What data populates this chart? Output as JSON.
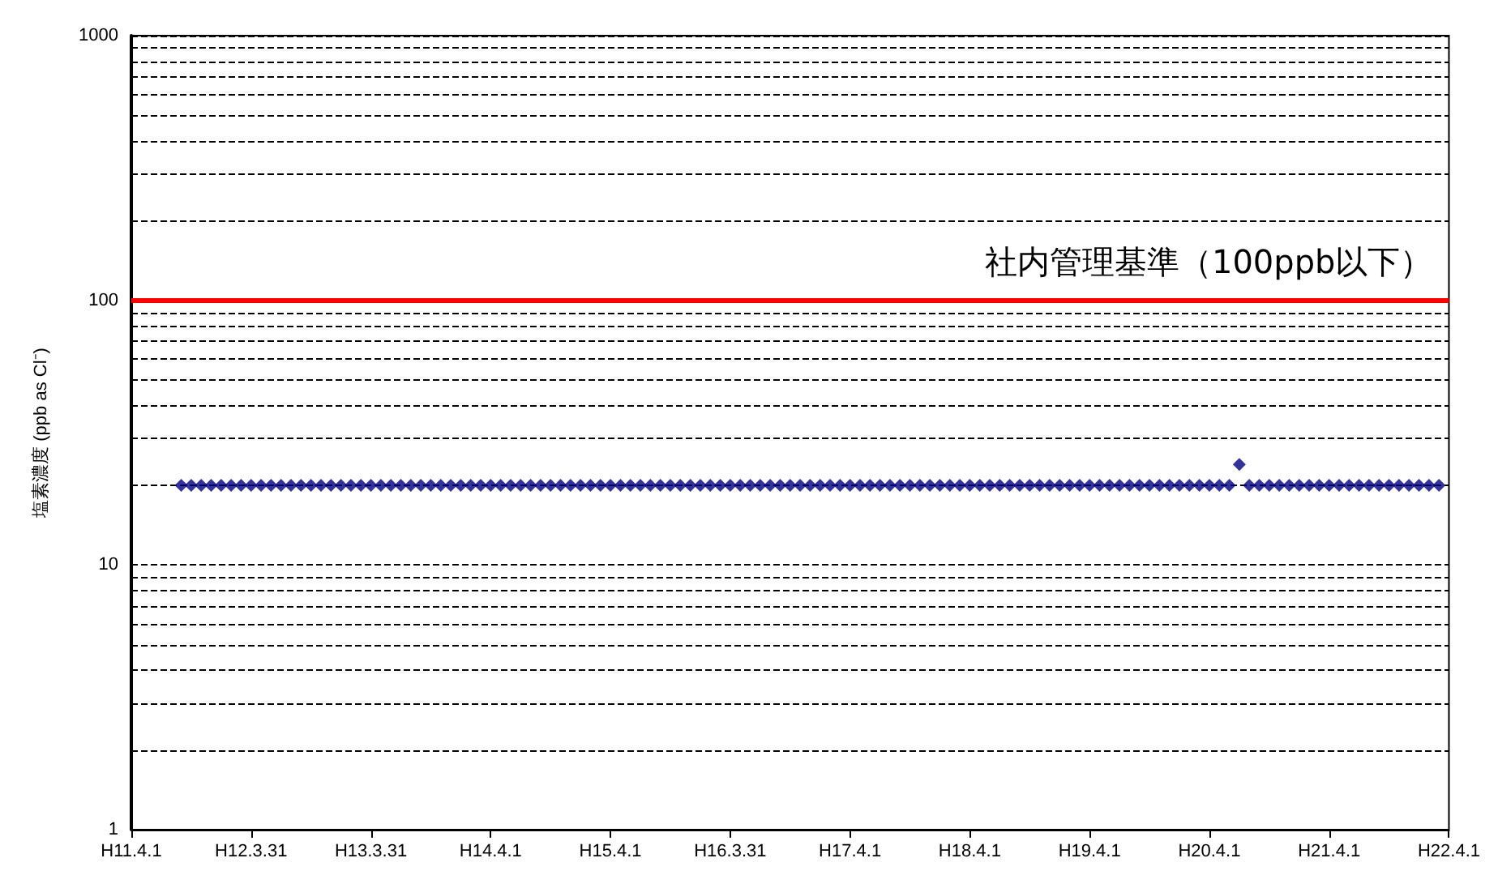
{
  "chart_data": {
    "type": "scatter",
    "ylabel": "塩素濃度 (ppb as Cl⁻)",
    "log": "y",
    "grid": "y",
    "marker": "diamond",
    "categories": [
      "H11.4.1",
      null,
      null,
      null,
      null,
      null,
      null,
      null,
      null,
      null,
      null,
      null,
      "H12.3.31",
      null,
      null,
      null,
      null,
      null,
      null,
      null,
      null,
      null,
      null,
      null,
      "H13.3.31",
      null,
      null,
      null,
      null,
      null,
      null,
      null,
      null,
      null,
      null,
      null,
      "H14.4.1",
      null,
      null,
      null,
      null,
      null,
      null,
      null,
      null,
      null,
      null,
      null,
      "H15.4.1",
      null,
      null,
      null,
      null,
      null,
      null,
      null,
      null,
      null,
      null,
      null,
      "H16.3.31",
      null,
      null,
      null,
      null,
      null,
      null,
      null,
      null,
      null,
      null,
      null,
      "H17.4.1",
      null,
      null,
      null,
      null,
      null,
      null,
      null,
      null,
      null,
      null,
      null,
      "H18.4.1",
      null,
      null,
      null,
      null,
      null,
      null,
      null,
      null,
      null,
      null,
      null,
      "H19.4.1",
      null,
      null,
      null,
      null,
      null,
      null,
      null,
      null,
      null,
      null,
      null,
      "H20.4.1",
      null,
      null,
      null,
      null,
      null,
      null,
      null,
      null,
      null,
      null,
      null,
      "H21.4.1",
      null,
      null,
      null,
      null,
      null,
      null,
      null,
      null,
      null,
      null,
      null,
      "H22.4.1"
    ],
    "ylim": [
      1,
      1000
    ],
    "yticks": [
      1,
      {
        "value": 2,
        "label": null
      },
      {
        "value": 3,
        "label": null
      },
      {
        "value": 4,
        "label": null
      },
      {
        "value": 5,
        "label": null
      },
      {
        "value": 6,
        "label": null
      },
      {
        "value": 7,
        "label": null
      },
      {
        "value": 8,
        "label": null
      },
      {
        "value": 9,
        "label": null
      },
      10,
      {
        "value": 20,
        "label": null
      },
      {
        "value": 30,
        "label": null
      },
      {
        "value": 40,
        "label": null
      },
      {
        "value": 50,
        "label": null
      },
      {
        "value": 60,
        "label": null
      },
      {
        "value": 70,
        "label": null
      },
      {
        "value": 80,
        "label": null
      },
      {
        "value": 90,
        "label": null
      },
      100,
      {
        "value": 200,
        "label": null
      },
      {
        "value": 300,
        "label": null
      },
      {
        "value": 400,
        "label": null
      },
      {
        "value": 500,
        "label": null
      },
      {
        "value": 600,
        "label": null
      },
      {
        "value": 700,
        "label": null
      },
      {
        "value": 800,
        "label": null
      },
      {
        "value": 900,
        "label": null
      },
      1000
    ],
    "ref_lines": [
      {
        "axis": "y",
        "value": 100,
        "label": "社内管理基準（100ppb以下）",
        "color": "#ff0000"
      }
    ],
    "series": [
      {
        "color": "#000080",
        "values": [
          null,
          null,
          null,
          null,
          null,
          20,
          20,
          20,
          20,
          20,
          20,
          20,
          20,
          20,
          20,
          20,
          20,
          20,
          20,
          20,
          20,
          20,
          20,
          20,
          20,
          20,
          20,
          20,
          20,
          20,
          20,
          20,
          20,
          20,
          20,
          20,
          20,
          20,
          20,
          20,
          20,
          20,
          20,
          20,
          20,
          20,
          20,
          20,
          20,
          20,
          20,
          20,
          20,
          20,
          20,
          20,
          20,
          20,
          20,
          20,
          20,
          20,
          20,
          20,
          20,
          20,
          20,
          20,
          20,
          20,
          20,
          20,
          20,
          20,
          20,
          20,
          20,
          20,
          20,
          20,
          20,
          20,
          20,
          20,
          20,
          20,
          20,
          20,
          20,
          20,
          20,
          20,
          20,
          20,
          20,
          20,
          20,
          20,
          20,
          20,
          20,
          20,
          20,
          20,
          20,
          20,
          20,
          20,
          20,
          20,
          20,
          24,
          20,
          20,
          20,
          20,
          20,
          20,
          20,
          20,
          20,
          20,
          20,
          20,
          20,
          20,
          20,
          20,
          20,
          20,
          20,
          20,
          null
        ]
      }
    ]
  }
}
